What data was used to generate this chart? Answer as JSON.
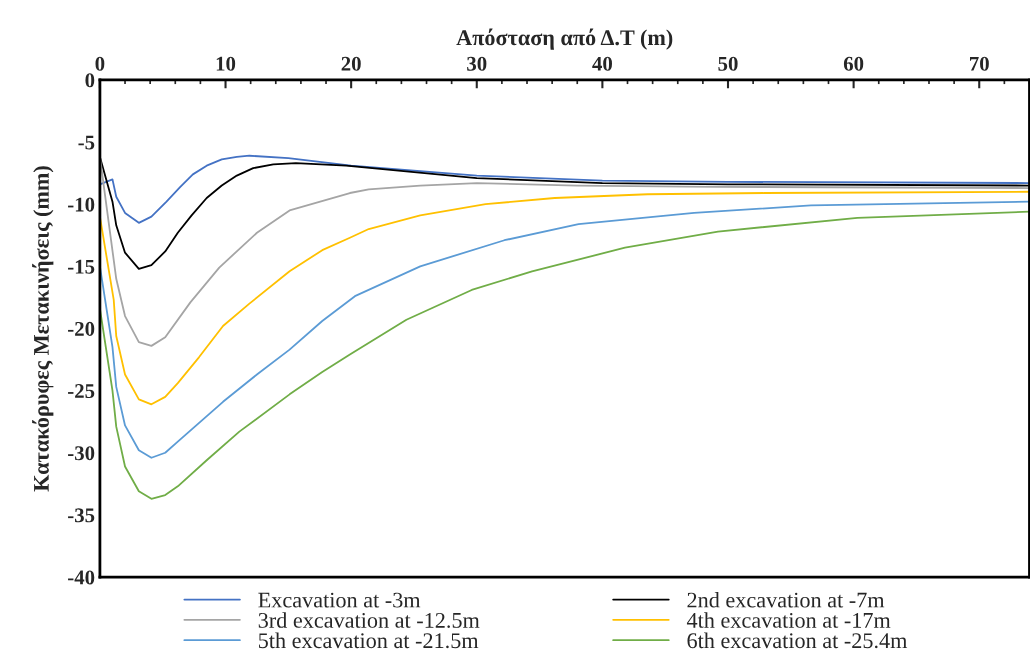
{
  "chart_data": {
    "type": "line",
    "xlabel": "Απόσταση από Δ.Τ (m)",
    "ylabel": "Κατακόρυφες Μετακινήσεις (mm)",
    "xlim": [
      0,
      74
    ],
    "xticks": [
      0,
      10,
      20,
      30,
      40,
      50,
      60,
      70
    ],
    "ylim": [
      -40,
      0
    ],
    "yticks": [
      0,
      -5,
      -10,
      -15,
      -20,
      -25,
      -30,
      -35,
      -40
    ],
    "grid": false,
    "legend": "bottom",
    "marker": "none",
    "line_style": "solid",
    "series": [
      {
        "name": "Excavation at -3m",
        "color": "#4472c4",
        "x": [
          0,
          1,
          1.3,
          2,
          3.1,
          4.1,
          5.3,
          6.4,
          7.4,
          8.5,
          9.7,
          10.9,
          11.9,
          15,
          20,
          30,
          40,
          50,
          74
        ],
        "values": [
          -8.4,
          -8.0,
          -9.4,
          -10.7,
          -11.5,
          -11.0,
          -9.8,
          -8.6,
          -7.6,
          -6.9,
          -6.4,
          -6.2,
          -6.1,
          -6.3,
          -6.9,
          -7.7,
          -8.1,
          -8.2,
          -8.3
        ]
      },
      {
        "name": "2nd excavation at -7m",
        "color": "#000000",
        "x": [
          0,
          1,
          1.3,
          2,
          3.1,
          4.1,
          5.2,
          6.2,
          7.3,
          8.5,
          9.7,
          10.9,
          12.2,
          13.8,
          15.6,
          19.6,
          30,
          40,
          50,
          74
        ],
        "values": [
          -6.2,
          -9.8,
          -11.7,
          -13.9,
          -15.2,
          -14.9,
          -13.8,
          -12.3,
          -10.9,
          -9.5,
          -8.5,
          -7.7,
          -7.1,
          -6.8,
          -6.7,
          -6.9,
          -7.9,
          -8.3,
          -8.4,
          -8.5
        ]
      },
      {
        "name": "3rd excavation at -12.5m",
        "color": "#a5a5a5",
        "x": [
          0,
          1.3,
          2,
          3.1,
          4.1,
          5.2,
          7.2,
          9.5,
          12.5,
          15.1,
          19.9,
          21.4,
          25.5,
          30,
          38,
          49,
          74
        ],
        "values": [
          -6.2,
          -16.0,
          -19.0,
          -21.1,
          -21.4,
          -20.7,
          -17.9,
          -15.1,
          -12.3,
          -10.5,
          -9.1,
          -8.8,
          -8.5,
          -8.3,
          -8.5,
          -8.6,
          -8.7
        ]
      },
      {
        "name": "4th excavation at -17m",
        "color": "#ffc000",
        "x": [
          0,
          1.1,
          1.3,
          2,
          3.1,
          4.1,
          5.2,
          6.2,
          7.9,
          9.8,
          11.9,
          15.1,
          17.7,
          19.9,
          21.4,
          25.5,
          30.7,
          36.2,
          43.6,
          52.9,
          74
        ],
        "values": [
          -11.0,
          -17.7,
          -20.6,
          -23.7,
          -25.7,
          -26.1,
          -25.5,
          -24.4,
          -22.3,
          -19.8,
          -18.0,
          -15.4,
          -13.7,
          -12.7,
          -12.0,
          -10.9,
          -10.0,
          -9.5,
          -9.2,
          -9.1,
          -9.0
        ]
      },
      {
        "name": "5th excavation at -21.5m",
        "color": "#5b9bd5",
        "x": [
          0,
          1,
          1.3,
          2,
          3.1,
          4.1,
          5.2,
          6.2,
          9.8,
          12.5,
          15.1,
          17.7,
          20.3,
          25.5,
          32.2,
          38.1,
          47.3,
          56.6,
          74
        ],
        "values": [
          -15.0,
          -21.5,
          -24.7,
          -27.8,
          -29.8,
          -30.4,
          -30.0,
          -29.1,
          -25.9,
          -23.7,
          -21.7,
          -19.4,
          -17.4,
          -15.0,
          -12.9,
          -11.6,
          -10.7,
          -10.1,
          -9.8
        ]
      },
      {
        "name": "6th excavation at -25.4m",
        "color": "#70ad47",
        "x": [
          0,
          1,
          1.3,
          2,
          3.1,
          4.1,
          5.2,
          6.2,
          8.5,
          11.1,
          15.1,
          17.7,
          19.9,
          24.4,
          29.6,
          34.4,
          41.8,
          49.2,
          60.3,
          74
        ],
        "values": [
          -18.4,
          -25.0,
          -27.9,
          -31.1,
          -33.1,
          -33.7,
          -33.4,
          -32.7,
          -30.6,
          -28.3,
          -25.3,
          -23.5,
          -22.1,
          -19.3,
          -16.9,
          -15.4,
          -13.5,
          -12.2,
          -11.1,
          -10.6
        ]
      }
    ]
  }
}
